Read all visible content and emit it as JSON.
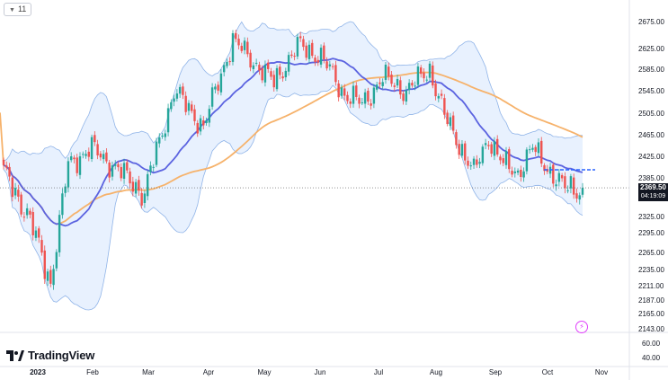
{
  "toolbar": {
    "interval_label": "11"
  },
  "branding": {
    "logo_text": "TradingView"
  },
  "last_price": {
    "value": "2369.50",
    "countdown": "04:19:09"
  },
  "colors": {
    "up": "#26a69a",
    "down": "#ef5350",
    "band_fill": "#dbeafe",
    "band_edge": "#90b4e8",
    "basis": "#5b63e0",
    "ma_long": "#f6b26b",
    "support": "#2962ff"
  },
  "chart_data": {
    "type": "candlestick",
    "x_axis": {
      "labels": [
        "2023",
        "Feb",
        "Mar",
        "Apr",
        "May",
        "Jun",
        "Jul",
        "Aug",
        "Sep",
        "Oct",
        "Nov"
      ]
    },
    "y_axis": {
      "ticks": [
        "2675.00",
        "2625.00",
        "2585.00",
        "2545.00",
        "2505.00",
        "2465.00",
        "2425.00",
        "2385.00",
        "2325.00",
        "2295.00",
        "2265.00",
        "2235.00",
        "2211.00",
        "2187.00",
        "2165.00",
        "2143.00"
      ],
      "range": [
        2143,
        2675
      ]
    },
    "volume_axis": {
      "ticks": [
        "60.00",
        "40.00"
      ]
    },
    "last_price": 2369.5,
    "support_level": 2400,
    "trading_days": 198,
    "anchors": {
      "day": [
        0,
        8,
        16,
        22,
        30,
        40,
        48,
        58,
        68,
        78,
        85,
        92,
        100,
        108,
        115,
        122,
        129,
        137,
        145,
        150,
        160,
        165,
        170,
        175,
        180,
        185,
        190,
        196
      ],
      "close": [
        2395,
        2330,
        2215,
        2410,
        2440,
        2395,
        2360,
        2545,
        2480,
        2640,
        2600,
        2560,
        2630,
        2610,
        2545,
        2520,
        2570,
        2545,
        2585,
        2500,
        2395,
        2460,
        2410,
        2395,
        2440,
        2405,
        2370,
        2369.5
      ]
    }
  }
}
